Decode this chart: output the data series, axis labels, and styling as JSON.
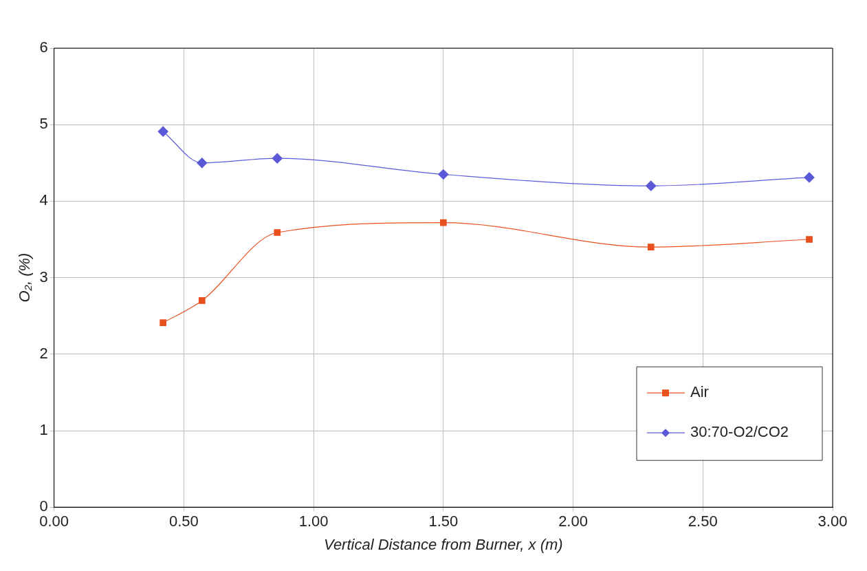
{
  "chart_data": {
    "type": "line",
    "xlabel": "Vertical Distance from Burner, x (m)",
    "ylabel": "O₂, (%)",
    "xlim": [
      0,
      3
    ],
    "xticks": [
      {
        "value": 0,
        "label": "0.00"
      },
      {
        "value": 0.5,
        "label": "0.50"
      },
      {
        "value": 1,
        "label": "1.00"
      },
      {
        "value": 1.5,
        "label": "1.50"
      },
      {
        "value": 2,
        "label": "2.00"
      },
      {
        "value": 2.5,
        "label": "2.50"
      },
      {
        "value": 3,
        "label": "3.00"
      }
    ],
    "ylim": [
      0,
      6
    ],
    "yticks": [
      0,
      1,
      2,
      3,
      4,
      5,
      6
    ],
    "grid": true,
    "legend": "bottom right",
    "series": [
      {
        "name": "Air",
        "color": "#e8501e",
        "marker": "square",
        "x": [
          0.42,
          0.57,
          0.86,
          1.5,
          2.3,
          2.91
        ],
        "values": [
          2.41,
          2.7,
          3.59,
          3.72,
          3.4,
          3.5
        ]
      },
      {
        "name": "30:70-O2/CO2",
        "color": "#5a5ad8",
        "marker": "diamond",
        "x": [
          0.42,
          0.57,
          0.86,
          1.5,
          2.3,
          2.91
        ],
        "values": [
          4.91,
          4.5,
          4.56,
          4.35,
          4.2,
          4.31
        ]
      }
    ]
  }
}
